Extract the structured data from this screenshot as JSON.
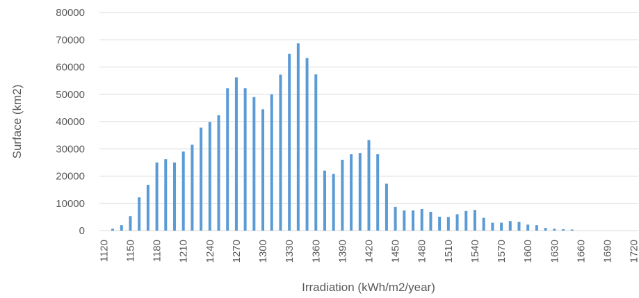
{
  "chart_data": {
    "type": "bar",
    "xlabel": "Irradiation (kWh/m2/year)",
    "ylabel": "Surface (km2)",
    "categories": [
      "1120",
      null,
      null,
      "1150",
      null,
      null,
      "1180",
      null,
      null,
      "1210",
      null,
      null,
      "1240",
      null,
      null,
      "1270",
      null,
      null,
      "1300",
      null,
      null,
      "1330",
      null,
      null,
      "1360",
      null,
      null,
      "1390",
      null,
      null,
      "1420",
      null,
      null,
      "1450",
      null,
      null,
      "1480",
      null,
      null,
      "1510",
      null,
      null,
      "1540",
      null,
      null,
      "1570",
      null,
      null,
      "1600",
      null,
      null,
      "1630",
      null,
      null,
      "1660",
      null,
      null,
      "1690",
      null,
      null,
      "1720"
    ],
    "values": [
      0,
      700,
      2000,
      5300,
      12200,
      16800,
      25000,
      26200,
      25000,
      29000,
      31500,
      37800,
      39800,
      42300,
      52200,
      56200,
      52200,
      49000,
      44500,
      50000,
      57200,
      64800,
      68700,
      63300,
      57300,
      22000,
      20800,
      26000,
      28000,
      28500,
      33200,
      28000,
      17200,
      8700,
      7400,
      7400,
      7900,
      6900,
      5100,
      5000,
      6000,
      7200,
      7600,
      4700,
      2900,
      2900,
      3500,
      3200,
      2200,
      2000,
      1000,
      700,
      500,
      400,
      0,
      0,
      0,
      0,
      0,
      0,
      0
    ],
    "color": "#5b9bd5",
    "ylim": [
      0,
      80000
    ],
    "yticks": [
      0,
      10000,
      20000,
      30000,
      40000,
      50000,
      60000,
      70000,
      80000
    ],
    "grid": true
  }
}
